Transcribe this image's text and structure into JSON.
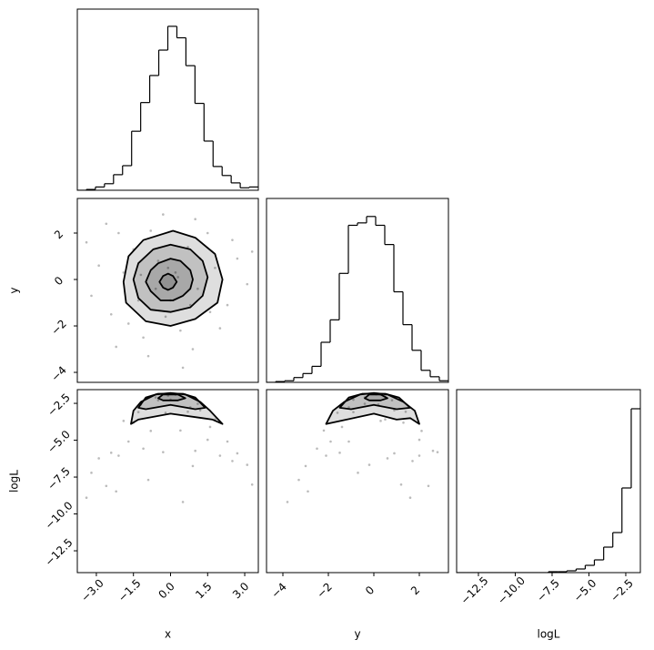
{
  "chart_data": [
    {
      "type": "histogram",
      "bins": [
        -3.77,
        -3.404,
        -3.038,
        -2.672,
        -2.306,
        -1.94,
        -1.574,
        -1.208,
        -0.842,
        -0.476,
        -0.11,
        0.256,
        0.622,
        0.988,
        1.354,
        1.72,
        2.086,
        2.452,
        2.818,
        3.184,
        3.55
      ],
      "values": [
        0,
        1,
        4,
        8,
        19,
        30,
        72,
        107,
        140,
        171,
        200,
        186,
        152,
        106,
        60,
        29,
        18,
        9,
        3,
        4
      ],
      "xlim": [
        -3.77,
        3.55
      ],
      "ylim": [
        0,
        221
      ],
      "color": "#000000"
    },
    {
      "type": "scatter",
      "ylabel": "y",
      "xlim": [
        -3.77,
        3.55
      ],
      "ylim": [
        -4.43,
        3.49
      ],
      "yticks": [
        {
          "value": -4,
          "label": "−4"
        },
        {
          "value": -2,
          "label": "−2"
        },
        0,
        2
      ],
      "x": [
        0.2,
        -0.5,
        1.1,
        -1.3,
        0.7,
        -0.2,
        1.8,
        -1.9,
        0.4,
        -0.8,
        2.3,
        -2.4,
        1.5,
        -1.1,
        2.7,
        -2.9,
        0.9,
        -0.3,
        3.1,
        -3.2,
        1.2,
        -0.6,
        0.0,
        -1.5,
        2.0,
        -2.1,
        0.5,
        -3.4,
        0.3,
        -0.1,
        1.6,
        -1.7,
        2.5,
        -2.6,
        3.3,
        -0.9,
        1.0,
        -1.2,
        0.8,
        -2.2
      ],
      "y": [
        0.3,
        0.8,
        -0.4,
        -0.9,
        1.4,
        -1.6,
        0.5,
        0.3,
        -2.2,
        2.1,
        -1.1,
        -1.5,
        2.0,
        -2.5,
        0.9,
        0.6,
        -3.0,
        2.8,
        -0.2,
        -0.7,
        0.9,
        -0.4,
        -0.9,
        1.3,
        -2.1,
        2.0,
        -3.8,
        1.6,
        0.1,
        0.5,
        -1.4,
        -1.9,
        1.7,
        2.4,
        1.2,
        -3.3,
        2.6,
        0.2,
        -1.1,
        -2.9
      ],
      "color": "#bbbbbb",
      "contour_color": "#000000",
      "contours": [
        {
          "x": [
            2.1,
            1.8,
            1.0,
            0.1,
            -1.1,
            -1.7,
            -1.9,
            -1.8,
            -1.0,
            0.0,
            1.0,
            1.9
          ],
          "y": [
            0.0,
            1.1,
            1.8,
            2.1,
            1.7,
            1.0,
            -0.1,
            -1.0,
            -1.8,
            -2.0,
            -1.7,
            -1.0
          ]
        },
        {
          "x": [
            1.5,
            1.3,
            0.8,
            0.0,
            -0.7,
            -1.3,
            -1.5,
            -1.3,
            -0.8,
            0.0,
            0.8,
            1.3
          ],
          "y": [
            0.1,
            0.8,
            1.3,
            1.5,
            1.3,
            0.7,
            0.0,
            -0.8,
            -1.3,
            -1.4,
            -1.2,
            -0.7
          ]
        },
        {
          "x": [
            0.9,
            0.8,
            0.4,
            0.0,
            -0.5,
            -0.8,
            -1.0,
            -0.8,
            -0.4,
            0.1,
            0.5,
            0.8
          ],
          "y": [
            0.0,
            0.4,
            0.8,
            0.9,
            0.7,
            0.4,
            -0.1,
            -0.5,
            -0.9,
            -0.9,
            -0.7,
            -0.4
          ]
        },
        {
          "x": [
            0.25,
            0.1,
            -0.1,
            -0.3,
            -0.45,
            -0.3,
            -0.1,
            0.1
          ],
          "y": [
            -0.1,
            0.15,
            0.25,
            0.15,
            -0.1,
            -0.35,
            -0.45,
            -0.35
          ]
        }
      ]
    },
    {
      "type": "histogram",
      "bins": [
        -4.72,
        -4.32,
        -3.92,
        -3.52,
        -3.12,
        -2.72,
        -2.32,
        -1.92,
        -1.52,
        -1.12,
        -0.72,
        -0.32,
        0.08,
        0.48,
        0.88,
        1.28,
        1.68,
        2.08,
        2.48,
        2.88,
        3.28
      ],
      "values": [
        0,
        1,
        2,
        6,
        11,
        20,
        50,
        78,
        136,
        196,
        199,
        207,
        196,
        172,
        113,
        72,
        40,
        15,
        7,
        2
      ],
      "xlim": [
        -4.72,
        3.28
      ],
      "ylim": [
        0,
        229.5
      ],
      "color": "#000000"
    },
    {
      "type": "scatter",
      "xlabel": "x",
      "ylabel": "logL",
      "xlim": [
        -3.77,
        3.55
      ],
      "ylim": [
        -13.98,
        -1.57
      ],
      "xticks": [
        {
          "value": -3,
          "label": "−3.0"
        },
        {
          "value": -1.5,
          "label": "−1.5"
        },
        {
          "value": 0,
          "label": "0.0"
        },
        1.5,
        {
          "value": 3,
          "label": "3.0"
        }
      ],
      "yticks": [
        {
          "value": -2.5,
          "label": "−2.5"
        },
        {
          "value": -5,
          "label": "−5.0"
        },
        {
          "value": -7.5,
          "label": "−7.5"
        },
        {
          "value": -10,
          "label": "−10.0"
        },
        {
          "value": -12.5,
          "label": "−12.5"
        }
      ],
      "x": [
        0.2,
        -0.5,
        1.1,
        -1.3,
        0.7,
        -0.2,
        1.8,
        -1.9,
        0.4,
        -0.8,
        2.3,
        -2.4,
        1.5,
        -1.1,
        2.7,
        -2.9,
        0.9,
        -0.3,
        3.1,
        -3.2,
        1.2,
        -0.6,
        0.0,
        -1.5,
        2.0,
        -2.1,
        0.5,
        -3.4,
        0.3,
        -0.1,
        1.6,
        -1.7,
        2.5,
        -2.6,
        3.3,
        -0.9,
        1.0,
        -1.2,
        0.8,
        -2.2
      ],
      "y": [
        -1.91,
        -2.29,
        -2.53,
        -3.09,
        -3.07,
        -3.14,
        -3.59,
        -3.69,
        -4.34,
        -4.37,
        -5.09,
        -5.85,
        -4.97,
        -5.57,
        -5.89,
        -6.23,
        -6.75,
        -5.81,
        -6.67,
        -7.21,
        -2.97,
        -2.1,
        -2.25,
        -3.81,
        -6.05,
        -6.05,
        -9.19,
        -8.9,
        -1.89,
        -1.97,
        -4.1,
        -5.09,
        -6.41,
        -8.1,
        -8.01,
        -7.69,
        -5.72,
        -2.58,
        -2.77,
        -8.47
      ],
      "color": "#bbbbbb",
      "contour_color": "#000000",
      "contours": [
        {
          "x": [
            -1.6,
            -1.5,
            -1.2,
            -0.6,
            0.0,
            0.6,
            1.2,
            1.6,
            2.1,
            1.7,
            1.3,
            0.0,
            -1.3,
            -1.6
          ],
          "y": [
            -3.9,
            -3.0,
            -2.4,
            -1.9,
            -1.8,
            -1.9,
            -2.4,
            -3.0,
            -3.9,
            -3.6,
            -3.5,
            -3.2,
            -3.6,
            -3.9
          ]
        },
        {
          "x": [
            -1.3,
            -1.0,
            -0.5,
            0.5,
            1.0,
            1.4,
            1.0,
            0.0,
            -1.0,
            -1.3
          ],
          "y": [
            -2.8,
            -2.1,
            -1.85,
            -1.85,
            -2.1,
            -2.8,
            -2.9,
            -2.6,
            -2.9,
            -2.8
          ]
        },
        {
          "x": [
            -0.5,
            -0.3,
            0.3,
            0.6,
            0.3,
            -0.3,
            -0.5
          ],
          "y": [
            -2.15,
            -1.9,
            -1.9,
            -2.15,
            -2.3,
            -2.3,
            -2.15
          ]
        }
      ]
    },
    {
      "type": "scatter",
      "xlabel": "y",
      "xlim": [
        -4.72,
        3.28
      ],
      "ylim": [
        -13.98,
        -1.57
      ],
      "xticks": [
        {
          "value": -4,
          "label": "−4"
        },
        {
          "value": -2,
          "label": "−2"
        },
        0,
        2
      ],
      "x": [
        0.3,
        0.8,
        -0.4,
        -0.9,
        1.4,
        -1.6,
        0.5,
        0.3,
        -2.2,
        2.1,
        -1.1,
        -1.5,
        2.0,
        -2.5,
        0.9,
        0.6,
        -3.0,
        2.8,
        -0.2,
        -0.7,
        0.9,
        -0.4,
        -0.9,
        1.3,
        -2.1,
        2.0,
        -3.8,
        1.6,
        0.1,
        0.5,
        -1.4,
        -1.9,
        1.7,
        2.4,
        1.2,
        -3.3,
        2.6,
        0.2,
        -1.1,
        -2.9
      ],
      "y": [
        -1.91,
        -2.29,
        -2.53,
        -3.09,
        -3.07,
        -3.14,
        -3.59,
        -3.69,
        -4.34,
        -4.37,
        -5.09,
        -5.85,
        -4.97,
        -5.57,
        -5.89,
        -6.23,
        -6.75,
        -5.81,
        -6.67,
        -7.21,
        -2.97,
        -2.1,
        -2.25,
        -3.81,
        -6.05,
        -6.05,
        -9.19,
        -8.9,
        -1.89,
        -1.97,
        -4.1,
        -5.09,
        -6.41,
        -8.1,
        -8.01,
        -7.69,
        -5.72,
        -2.58,
        -2.77,
        -8.47
      ],
      "color": "#bbbbbb",
      "contour_color": "#000000",
      "contours": [
        {
          "x": [
            -2.1,
            -1.8,
            -1.3,
            -0.6,
            0.0,
            0.6,
            1.3,
            1.8,
            2.0,
            1.6,
            1.0,
            0.0,
            -1.2,
            -2.1
          ],
          "y": [
            -3.9,
            -3.0,
            -2.4,
            -1.9,
            -1.8,
            -1.9,
            -2.4,
            -3.0,
            -3.9,
            -3.5,
            -3.6,
            -3.2,
            -3.6,
            -3.9
          ]
        },
        {
          "x": [
            -1.5,
            -1.1,
            -0.5,
            0.5,
            1.1,
            1.6,
            1.0,
            0.0,
            -1.0,
            -1.5
          ],
          "y": [
            -2.8,
            -2.1,
            -1.85,
            -1.85,
            -2.1,
            -2.8,
            -2.9,
            -2.6,
            -2.9,
            -2.8
          ]
        },
        {
          "x": [
            -0.4,
            -0.2,
            0.3,
            0.6,
            0.3,
            -0.2,
            -0.4
          ],
          "y": [
            -2.15,
            -1.9,
            -1.9,
            -2.15,
            -2.3,
            -2.3,
            -2.15
          ]
        }
      ]
    },
    {
      "type": "histogram",
      "xlabel": "logL",
      "bins": [
        -13.98,
        -13.36,
        -12.73,
        -12.11,
        -11.49,
        -10.86,
        -10.24,
        -9.62,
        -8.99,
        -8.37,
        -7.75,
        -7.12,
        -6.5,
        -5.87,
        -5.25,
        -4.63,
        -4.0,
        -3.38,
        -2.76,
        -2.13,
        -1.51
      ],
      "values": [
        0,
        0,
        0,
        0,
        0,
        0,
        0,
        0,
        0,
        0,
        1,
        1,
        2,
        4,
        8,
        14,
        28,
        44,
        93,
        180
      ],
      "xlim": [
        -13.98,
        -1.51
      ],
      "ylim": [
        0,
        201
      ],
      "color": "#000000",
      "xticks": [
        {
          "value": -12.5,
          "label": "−12.5"
        },
        {
          "value": -10,
          "label": "−10.0"
        },
        {
          "value": -7.5,
          "label": "−7.5"
        },
        {
          "value": -5,
          "label": "−5.0"
        },
        {
          "value": -2.5,
          "label": "−2.5"
        }
      ]
    }
  ]
}
